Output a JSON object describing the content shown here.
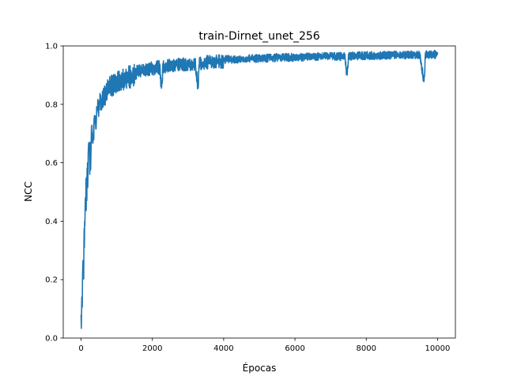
{
  "chart_data": {
    "type": "line",
    "title": "train-Dirnet_unet_256",
    "xlabel": "Épocas",
    "ylabel": "NCC",
    "xlim": [
      -500,
      10500
    ],
    "ylim": [
      0.0,
      1.0
    ],
    "x_ticks": [
      0,
      2000,
      4000,
      6000,
      8000,
      10000
    ],
    "y_ticks": [
      0.0,
      0.2,
      0.4,
      0.6,
      0.8,
      1.0
    ],
    "x_tick_labels": [
      "0",
      "2000",
      "4000",
      "6000",
      "8000",
      "10000"
    ],
    "y_tick_labels": [
      "0.0",
      "0.2",
      "0.4",
      "0.6",
      "0.8",
      "1.0"
    ],
    "grid": false,
    "legend": "none",
    "line_color": "#1f77b4",
    "series": [
      {
        "x": [
          0,
          20,
          40,
          60,
          80,
          100,
          120,
          150,
          180,
          200,
          250,
          300,
          350,
          400,
          450,
          500,
          550,
          600,
          700,
          800,
          900,
          1000,
          1100,
          1200,
          1400,
          1600,
          1800,
          2000,
          2200,
          2260,
          2300,
          2500,
          2800,
          3000,
          3200,
          3280,
          3320,
          3500,
          4000,
          4500,
          5000,
          5400,
          5500,
          6000,
          6500,
          7000,
          7400,
          7460,
          7500,
          8000,
          8500,
          9000,
          9500,
          9620,
          9660,
          9700,
          10000
        ],
        "y": [
          0.08,
          0.14,
          0.2,
          0.25,
          0.32,
          0.4,
          0.48,
          0.55,
          0.6,
          0.63,
          0.67,
          0.7,
          0.73,
          0.76,
          0.79,
          0.81,
          0.83,
          0.845,
          0.86,
          0.875,
          0.885,
          0.895,
          0.9,
          0.905,
          0.915,
          0.925,
          0.93,
          0.935,
          0.94,
          0.86,
          0.94,
          0.945,
          0.948,
          0.95,
          0.952,
          0.87,
          0.953,
          0.955,
          0.96,
          0.962,
          0.965,
          0.966,
          0.967,
          0.968,
          0.97,
          0.971,
          0.972,
          0.9,
          0.972,
          0.974,
          0.975,
          0.976,
          0.977,
          0.88,
          0.977,
          0.978,
          0.978
        ]
      }
    ]
  }
}
